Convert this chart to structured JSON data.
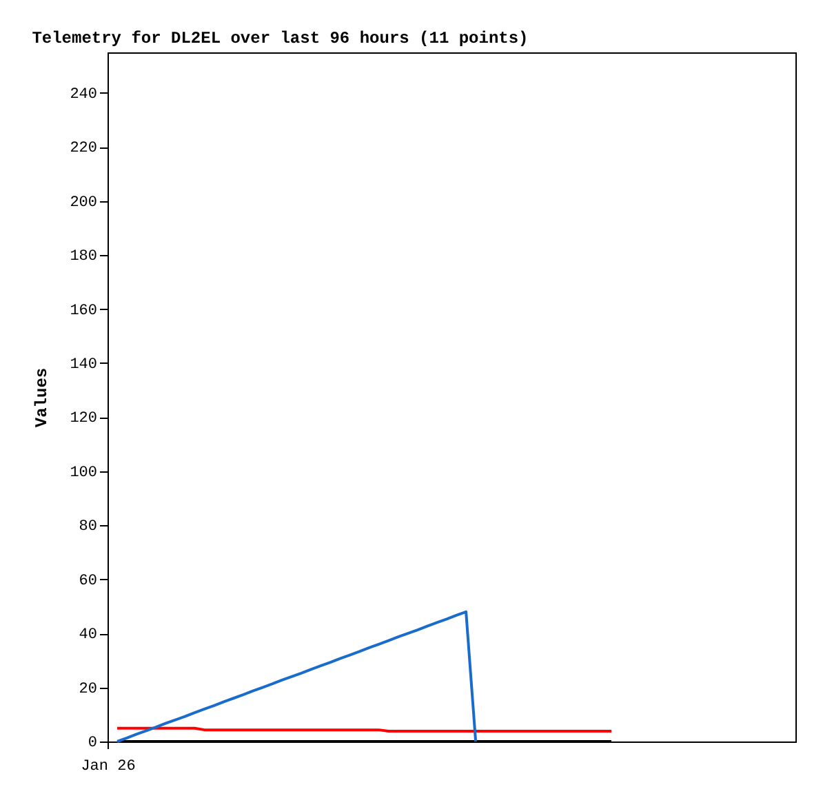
{
  "chart_data": {
    "type": "line",
    "title": "Telemetry for DL2EL over last 96 hours (11 points)",
    "ylabel": "Values",
    "categories": [
      "Jan 26",
      null,
      null,
      null,
      null,
      null,
      null,
      null,
      null,
      null,
      null,
      null,
      null,
      null,
      null,
      null,
      null,
      null,
      null,
      null,
      null,
      null,
      null,
      null,
      null,
      null,
      null,
      null,
      null,
      null,
      null,
      null,
      null,
      null,
      null,
      null,
      null,
      null,
      null,
      null,
      null,
      null,
      null,
      null,
      null,
      null,
      null,
      null,
      null,
      null,
      null,
      null,
      null,
      null,
      null,
      null,
      null,
      null,
      null,
      null,
      null,
      null,
      null,
      null,
      null,
      null,
      null,
      null,
      null,
      null,
      null,
      null
    ],
    "ylim": [
      0,
      255
    ],
    "yticks": [
      0,
      20,
      40,
      60,
      80,
      100,
      120,
      140,
      160,
      180,
      200,
      220,
      240
    ],
    "grid": false,
    "marker": "none",
    "line_style": "solid",
    "series": [
      {
        "color": "#000000",
        "values": [
          null,
          0,
          0,
          0,
          0,
          0,
          0,
          0,
          0,
          0,
          0,
          0,
          0,
          0,
          0,
          0,
          0,
          0,
          0,
          0,
          0,
          0,
          0,
          0,
          0,
          0,
          0,
          0,
          0,
          0,
          0,
          0,
          0,
          0,
          0,
          0,
          0,
          0,
          0,
          0,
          0,
          0,
          0,
          0,
          0,
          0,
          0,
          0,
          0,
          0,
          0,
          0,
          0,
          null,
          null,
          null,
          null,
          null,
          null,
          null,
          null,
          null,
          null,
          null,
          null,
          null,
          null,
          null,
          null,
          null,
          null,
          null
        ]
      },
      {
        "color": "#ff0000",
        "values": [
          null,
          4.9,
          4.9,
          4.9,
          4.9,
          4.9,
          4.9,
          4.9,
          4.9,
          4.9,
          4.3,
          4.3,
          4.3,
          4.3,
          4.3,
          4.3,
          4.3,
          4.3,
          4.3,
          4.3,
          4.3,
          4.3,
          4.3,
          4.3,
          4.3,
          4.3,
          4.3,
          4.3,
          4.3,
          3.8,
          3.8,
          3.8,
          3.8,
          3.8,
          3.8,
          3.8,
          3.8,
          3.8,
          3.8,
          3.8,
          3.8,
          3.8,
          3.8,
          3.8,
          3.8,
          3.8,
          3.8,
          3.8,
          3.8,
          3.8,
          3.8,
          3.8,
          3.8,
          null,
          null,
          null,
          null,
          null,
          null,
          null,
          null,
          null,
          null,
          null,
          null,
          null,
          null,
          null,
          null,
          null,
          null,
          null
        ]
      },
      {
        "color": "#1a6ccc",
        "values": [
          null,
          0,
          1.3,
          2.7,
          4,
          5.3,
          6.7,
          8,
          9.3,
          10.7,
          12,
          13.3,
          14.7,
          16,
          17.3,
          18.7,
          20,
          21.3,
          22.7,
          24,
          25.3,
          26.7,
          28,
          29.3,
          30.7,
          32,
          33.3,
          34.7,
          36,
          37.3,
          38.7,
          40,
          41.3,
          42.7,
          44,
          45.3,
          46.7,
          48,
          0,
          null,
          null,
          null,
          null,
          null,
          null,
          null,
          null,
          null,
          null,
          null,
          null,
          null,
          null,
          null,
          null,
          null,
          null,
          null,
          null,
          null,
          null,
          null,
          null,
          null,
          null,
          null,
          null,
          null,
          null,
          null,
          null,
          null
        ]
      }
    ]
  }
}
